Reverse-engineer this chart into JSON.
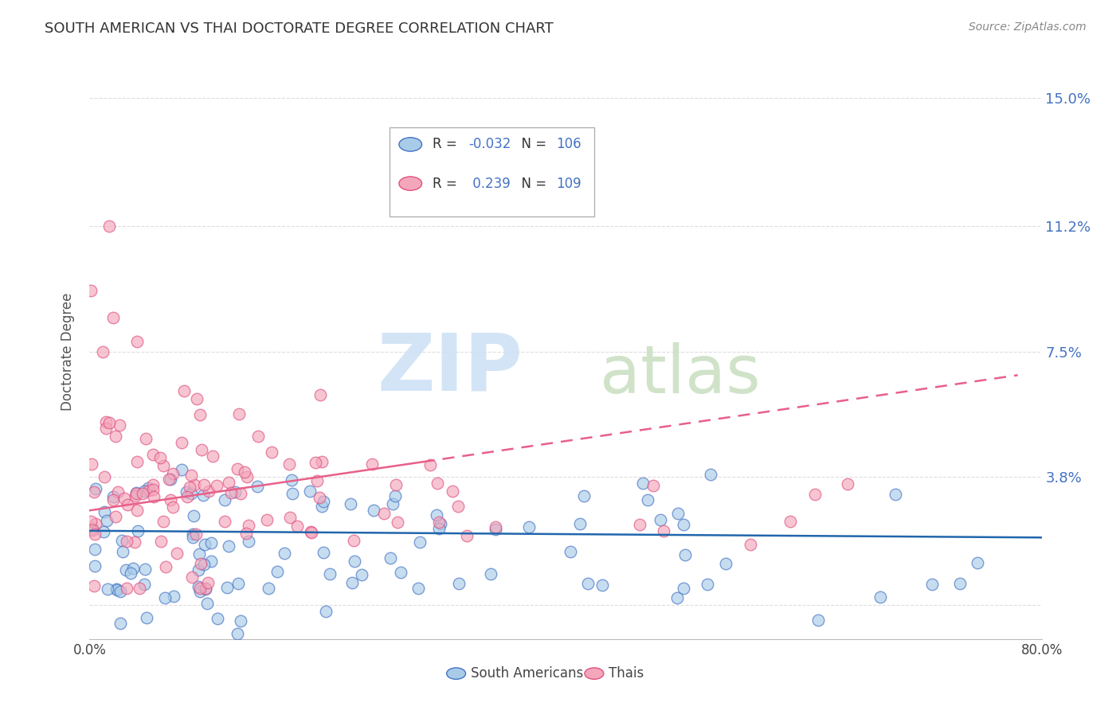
{
  "title": "SOUTH AMERICAN VS THAI DOCTORATE DEGREE CORRELATION CHART",
  "source": "Source: ZipAtlas.com",
  "ylabel": "Doctorate Degree",
  "ytick_vals": [
    0.0,
    0.038,
    0.075,
    0.112,
    0.15
  ],
  "ytick_labels": [
    "",
    "3.8%",
    "7.5%",
    "11.2%",
    "15.0%"
  ],
  "xlim": [
    0.0,
    0.8
  ],
  "ylim": [
    -0.01,
    0.16
  ],
  "blue_face_color": "#a8cce8",
  "blue_edge_color": "#4472c4",
  "pink_face_color": "#f4a7bb",
  "pink_edge_color": "#e05080",
  "blue_line_color": "#2166ac",
  "pink_line_color": "#e8608a",
  "blue_R": -0.032,
  "blue_N": 106,
  "pink_R": 0.239,
  "pink_N": 109,
  "title_fontsize": 13,
  "right_tick_color": "#4472c4",
  "legend_label_blue": "South Americans",
  "legend_label_pink": "Thais",
  "watermark_zip_color": "#cce0f5",
  "watermark_atlas_color": "#c8dfc0",
  "grid_color": "#dddddd",
  "source_color": "#888888"
}
